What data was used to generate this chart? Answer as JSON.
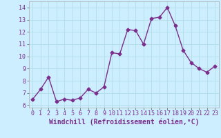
{
  "x": [
    0,
    1,
    2,
    3,
    4,
    5,
    6,
    7,
    8,
    9,
    10,
    11,
    12,
    13,
    14,
    15,
    16,
    17,
    18,
    19,
    20,
    21,
    22,
    23
  ],
  "y": [
    6.5,
    7.3,
    8.3,
    6.3,
    6.5,
    6.4,
    6.6,
    7.3,
    7.0,
    7.5,
    10.3,
    10.2,
    12.2,
    12.1,
    11.0,
    13.1,
    13.2,
    14.0,
    12.5,
    10.5,
    9.5,
    9.0,
    8.7,
    9.2
  ],
  "line_color": "#7b2d8b",
  "marker": "D",
  "marker_size": 2.5,
  "xlabel": "Windchill (Refroidissement éolien,°C)",
  "xlabel_fontsize": 7,
  "ylim": [
    5.8,
    14.5
  ],
  "yticks": [
    6,
    7,
    8,
    9,
    10,
    11,
    12,
    13,
    14
  ],
  "xticks": [
    0,
    1,
    2,
    3,
    4,
    5,
    6,
    7,
    8,
    9,
    10,
    11,
    12,
    13,
    14,
    15,
    16,
    17,
    18,
    19,
    20,
    21,
    22,
    23
  ],
  "bg_color": "#cceeff",
  "grid_color": "#b0dde8",
  "tick_fontsize": 6,
  "line_width": 1.0
}
